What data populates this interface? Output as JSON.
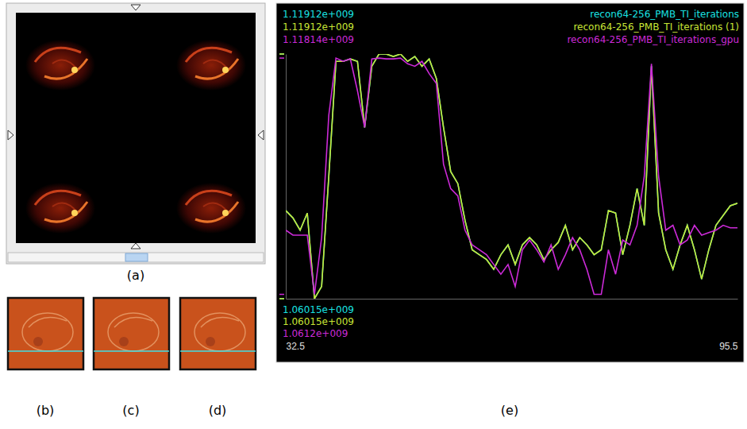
{
  "panels": {
    "labels": [
      "(a)",
      "(b)",
      "(c)",
      "(d)",
      "(e)"
    ]
  },
  "chart_data": {
    "type": "line",
    "x": [
      32.5,
      33.5,
      34.5,
      35.5,
      36.5,
      37.5,
      38.5,
      39.5,
      40.5,
      41.5,
      42.5,
      43.5,
      44.5,
      45.5,
      46.5,
      47.5,
      48.5,
      49.5,
      50.5,
      51.5,
      52.5,
      53.5,
      54.5,
      55.5,
      56.5,
      57.5,
      58.5,
      59.5,
      60.5,
      61.5,
      62.5,
      63.5,
      64.5,
      65.5,
      66.5,
      67.5,
      68.5,
      69.5,
      70.5,
      71.5,
      72.5,
      73.5,
      74.5,
      75.5,
      76.5,
      77.5,
      78.5,
      79.5,
      80.5,
      81.5,
      82.5,
      83.5,
      84.5,
      85.5,
      86.5,
      87.5,
      88.5,
      89.5,
      90.5,
      91.5,
      92.5,
      93.5,
      94.5,
      95.5
    ],
    "xlim": [
      32.5,
      95.5
    ],
    "xticks": [
      32.5,
      95.5
    ],
    "ylim": [
      1060150000,
      1119120000
    ],
    "tick_labels": "x",
    "legend": "top-right",
    "series": [
      {
        "name": "recon64-256_PMB_TI_iterations",
        "color": "#19e3e3",
        "max": {
          "value": 1119120000,
          "label": "1.11912e+009"
        },
        "min": {
          "value": 1060150000,
          "label": "1.06015e+009"
        },
        "values": [
          1081380000,
          1079610000,
          1076660000,
          1080790000,
          1060150000,
          1063100000,
          1089640000,
          1117350000,
          1117350000,
          1117940000,
          1117350000,
          1101430000,
          1116170000,
          1119120000,
          1119120000,
          1118530000,
          1119120000,
          1117350000,
          1118530000,
          1116170000,
          1117940000,
          1113220000,
          1101430000,
          1090810000,
          1087870000,
          1079020000,
          1071940000,
          1070760000,
          1069590000,
          1067230000,
          1070760000,
          1073120000,
          1068410000,
          1073120000,
          1074890000,
          1073120000,
          1069590000,
          1071940000,
          1073710000,
          1077840000,
          1071940000,
          1074890000,
          1073120000,
          1070760000,
          1071940000,
          1081380000,
          1080790000,
          1070760000,
          1077840000,
          1086690000,
          1077840000,
          1116170000,
          1080790000,
          1071940000,
          1067230000,
          1073120000,
          1077840000,
          1071940000,
          1064870000,
          1071940000,
          1077840000,
          1080200000,
          1082560000,
          1083150000
        ]
      },
      {
        "name": "recon64-256_PMB_TI_iterations (1)",
        "color": "#c9e635",
        "max": {
          "value": 1119120000,
          "label": "1.11912e+009"
        },
        "min": {
          "value": 1060150000,
          "label": "1.06015e+009"
        },
        "values": [
          1081380000,
          1079610000,
          1076660000,
          1080790000,
          1060150000,
          1063100000,
          1089640000,
          1117350000,
          1117350000,
          1117940000,
          1117350000,
          1101430000,
          1116170000,
          1119120000,
          1119120000,
          1118530000,
          1119120000,
          1117350000,
          1118530000,
          1116170000,
          1117940000,
          1113220000,
          1101430000,
          1090810000,
          1087870000,
          1079020000,
          1071940000,
          1070760000,
          1069590000,
          1067230000,
          1070760000,
          1073120000,
          1068410000,
          1073120000,
          1074890000,
          1073120000,
          1069590000,
          1071940000,
          1073710000,
          1077840000,
          1071940000,
          1074890000,
          1073120000,
          1070760000,
          1071940000,
          1081380000,
          1080790000,
          1070760000,
          1077840000,
          1086690000,
          1077840000,
          1116170000,
          1080790000,
          1071940000,
          1067230000,
          1073120000,
          1077840000,
          1071940000,
          1064870000,
          1071940000,
          1077840000,
          1080200000,
          1082560000,
          1083150000
        ]
      },
      {
        "name": "recon64-256_PMB_TI_iterations_gpu",
        "color": "#cc2ad8",
        "max": {
          "value": 1118140000,
          "label": "1.11814e+009"
        },
        "min": {
          "value": 1061200000,
          "label": "1.0612e+009"
        },
        "values": [
          1076660000,
          1075480000,
          1075480000,
          1075480000,
          1061200000,
          1074890000,
          1104380000,
          1118140000,
          1117350000,
          1117940000,
          1110270000,
          1101430000,
          1117940000,
          1118140000,
          1117940000,
          1117940000,
          1118140000,
          1116760000,
          1116170000,
          1117350000,
          1114400000,
          1112040000,
          1092580000,
          1086690000,
          1084920000,
          1076660000,
          1073120000,
          1071940000,
          1070760000,
          1068410000,
          1066050000,
          1068410000,
          1063100000,
          1071940000,
          1074300000,
          1071940000,
          1068990000,
          1073120000,
          1067230000,
          1070760000,
          1074890000,
          1071940000,
          1067230000,
          1061200000,
          1061200000,
          1071940000,
          1066050000,
          1074300000,
          1073120000,
          1077840000,
          1089640000,
          1116760000,
          1089640000,
          1076660000,
          1077840000,
          1073120000,
          1074300000,
          1077840000,
          1075480000,
          1076070000,
          1076660000,
          1077840000,
          1077250000,
          1077250000
        ]
      }
    ]
  }
}
